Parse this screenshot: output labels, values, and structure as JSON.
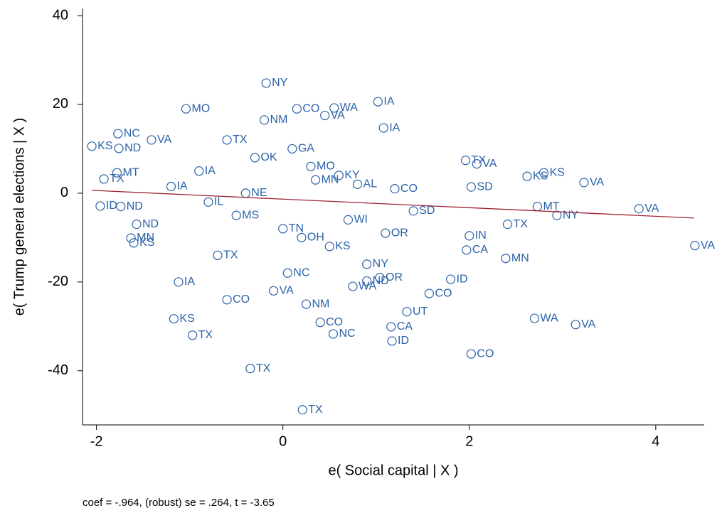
{
  "chart_data": {
    "type": "scatter",
    "x_label": "e( Social capital | X )",
    "y_label": "e( Trump general elections | X )",
    "note": "coef = -.964, (robust) se = .264, t = -3.65",
    "xlim": [
      -2.15,
      4.52
    ],
    "ylim": [
      -52.2,
      41.6
    ],
    "xticks": [
      -2,
      0,
      2,
      4
    ],
    "yticks": [
      -40,
      -20,
      0,
      20,
      40
    ],
    "color": "#2a62a8",
    "fit_color": "#9b2335",
    "points": {
      "x": [
        -0.18,
        1.02,
        0.55,
        1.08,
        -1.04,
        -1.77,
        -2.05,
        -1.76,
        -1.41,
        -1.78,
        -1.92,
        -1.96,
        -1.74,
        -1.57,
        -1.63,
        -1.6,
        -1.12,
        -1.17,
        -0.97,
        -0.35,
        0.21,
        0.54,
        1.33,
        1.16,
        1.17,
        1.57,
        1.8,
        2.02,
        2.7,
        3.14,
        2.39,
        1.97,
        4.42,
        3.82,
        3.23,
        2.8,
        2.94,
        2.73,
        2.41,
        2.62,
        2.08,
        1.96,
        1.04,
        0.9,
        0.4,
        2.0,
        2.02,
        0.15,
        -0.2,
        0.45,
        -0.6,
        -0.3,
        0.1,
        0.3,
        0.6,
        0.8,
        -0.8,
        -0.5,
        0.0,
        0.2,
        0.5,
        0.7,
        -0.9,
        -0.4,
        0.35,
        1.2,
        1.4,
        -1.2,
        -0.7,
        0.05,
        0.9,
        1.1,
        -0.1,
        -0.6,
        0.25,
        0.75
      ],
      "values": [
        24.8,
        20.6,
        19.2,
        14.7,
        19.0,
        13.4,
        10.6,
        10.1,
        12.0,
        4.6,
        3.2,
        -2.9,
        -3.0,
        -7.0,
        -10.1,
        -11.2,
        -20.0,
        -28.3,
        -32.0,
        -39.5,
        -48.8,
        -31.7,
        -26.7,
        -30.1,
        -33.3,
        -22.6,
        -19.4,
        -36.2,
        -28.2,
        -29.6,
        -14.7,
        -12.8,
        -11.8,
        -3.5,
        2.4,
        4.6,
        -5.0,
        -3.0,
        -7.0,
        3.8,
        6.6,
        7.4,
        -19.0,
        -19.8,
        -29.1,
        -9.6,
        1.4,
        19.0,
        16.5,
        17.5,
        12.0,
        8.0,
        10.0,
        6.0,
        4.0,
        2.0,
        -2.0,
        -5.0,
        -8.0,
        -10.0,
        -12.0,
        -6.0,
        5.0,
        0.0,
        3.0,
        1.0,
        -4.0,
        1.5,
        -14.0,
        -18.0,
        -16.0,
        -9.0,
        -22.0,
        -24.0,
        -25.0,
        -21.0
      ],
      "labels": [
        "NY",
        "IA",
        "WA",
        "IA",
        "MO",
        "NC",
        "KS",
        "ND",
        "VA",
        "MT",
        "TX",
        "ID",
        "ND",
        "ND",
        "MN",
        "KS",
        "IA",
        "KS",
        "TX",
        "TX",
        "TX",
        "NC",
        "UT",
        "CA",
        "ID",
        "CO",
        "ID",
        "CO",
        "WA",
        "VA",
        "MN",
        "CA",
        "VA",
        "VA",
        "VA",
        "KS",
        "NY",
        "MT",
        "TX",
        "KS",
        "VA",
        "TX",
        "OR",
        "ND",
        "CO",
        "IN",
        "SD",
        "CO",
        "NM",
        "VA",
        "TX",
        "OK",
        "GA",
        "MO",
        "KY",
        "AL",
        "IL",
        "MS",
        "TN",
        "OH",
        "KS",
        "WI",
        "IA",
        "NE",
        "MN",
        "CO",
        "SD",
        "IA",
        "TX",
        "NC",
        "NY",
        "OR",
        "VA",
        "CO",
        "NM",
        "WA"
      ]
    },
    "fit": {
      "x": [
        -2.05,
        4.41
      ],
      "values": [
        0.64,
        -5.6
      ]
    }
  }
}
